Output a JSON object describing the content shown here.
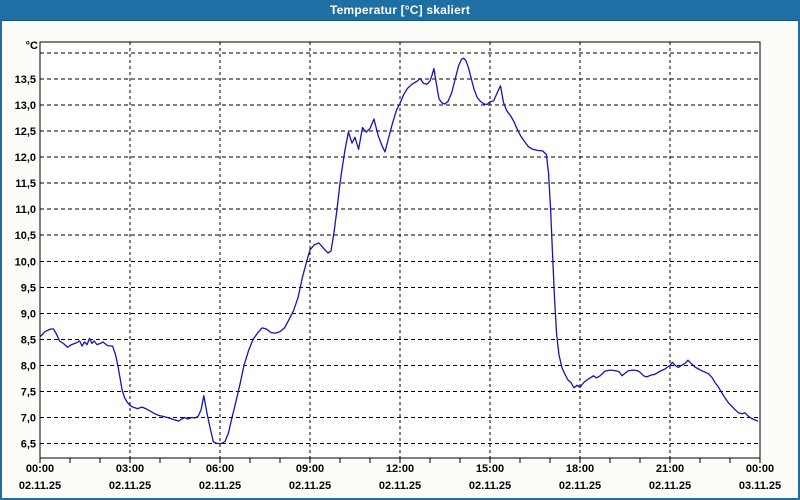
{
  "window": {
    "title": "Temperatur [°C] skaliert"
  },
  "colors": {
    "titlebar": "#1d6fa4",
    "titlebar_text": "#ffffff",
    "window_border": "#1d6fa4",
    "background": "#fcfcf9",
    "plot_background": "#ffffff",
    "gridline": "#000000",
    "axis": "#000000",
    "series_line": "#1414b8"
  },
  "chart_data": {
    "type": "line",
    "title": "Temperatur [°C] skaliert",
    "grid": true,
    "legend": false,
    "x_axis": {
      "unit": "time (hours over one day)",
      "xlim_hours": [
        0,
        24
      ],
      "major_step_hours": 3,
      "minor_step_hours": 1,
      "ticks": [
        {
          "hour": 0,
          "time": "00:00",
          "date": "02.11.25"
        },
        {
          "hour": 3,
          "time": "03:00",
          "date": "02.11.25"
        },
        {
          "hour": 6,
          "time": "06:00",
          "date": "02.11.25"
        },
        {
          "hour": 9,
          "time": "09:00",
          "date": "02.11.25"
        },
        {
          "hour": 12,
          "time": "12:00",
          "date": "02.11.25"
        },
        {
          "hour": 15,
          "time": "15:00",
          "date": "02.11.25"
        },
        {
          "hour": 18,
          "time": "18:00",
          "date": "02.11.25"
        },
        {
          "hour": 21,
          "time": "21:00",
          "date": "02.11.25"
        },
        {
          "hour": 24,
          "time": "00:00",
          "date": "03.11.25"
        }
      ]
    },
    "y_axis": {
      "unit_label": "°C",
      "ylim": [
        6.2,
        14.2
      ],
      "grid_min": 6.5,
      "grid_max": 14.0,
      "grid_step": 0.5,
      "ticks": [
        {
          "v": 13.5,
          "label": "13,5"
        },
        {
          "v": 13.0,
          "label": "13,0"
        },
        {
          "v": 12.5,
          "label": "12,5"
        },
        {
          "v": 12.0,
          "label": "12,0"
        },
        {
          "v": 11.5,
          "label": "11,5"
        },
        {
          "v": 11.0,
          "label": "11,0"
        },
        {
          "v": 10.5,
          "label": "10,5"
        },
        {
          "v": 10.0,
          "label": "10,0"
        },
        {
          "v": 9.5,
          "label": "9,5"
        },
        {
          "v": 9.0,
          "label": "9,0"
        },
        {
          "v": 8.5,
          "label": "8,5"
        },
        {
          "v": 8.0,
          "label": "8,0"
        },
        {
          "v": 7.5,
          "label": "7,5"
        },
        {
          "v": 7.0,
          "label": "7,0"
        },
        {
          "v": 6.5,
          "label": "6,5"
        }
      ]
    },
    "series": [
      {
        "name": "Temperatur [°C] skaliert",
        "color": "#1414b8",
        "points": [
          [
            0.0,
            8.55
          ],
          [
            0.17,
            8.65
          ],
          [
            0.35,
            8.7
          ],
          [
            0.45,
            8.7
          ],
          [
            0.55,
            8.6
          ],
          [
            0.65,
            8.47
          ],
          [
            0.78,
            8.42
          ],
          [
            0.92,
            8.35
          ],
          [
            1.05,
            8.4
          ],
          [
            1.2,
            8.43
          ],
          [
            1.32,
            8.47
          ],
          [
            1.4,
            8.37
          ],
          [
            1.48,
            8.45
          ],
          [
            1.57,
            8.4
          ],
          [
            1.65,
            8.52
          ],
          [
            1.73,
            8.42
          ],
          [
            1.8,
            8.47
          ],
          [
            1.9,
            8.4
          ],
          [
            2.0,
            8.42
          ],
          [
            2.1,
            8.45
          ],
          [
            2.25,
            8.38
          ],
          [
            2.42,
            8.37
          ],
          [
            2.52,
            8.2
          ],
          [
            2.6,
            7.98
          ],
          [
            2.67,
            7.75
          ],
          [
            2.74,
            7.52
          ],
          [
            2.82,
            7.38
          ],
          [
            2.9,
            7.3
          ],
          [
            3.0,
            7.23
          ],
          [
            3.1,
            7.2
          ],
          [
            3.25,
            7.17
          ],
          [
            3.4,
            7.2
          ],
          [
            3.52,
            7.17
          ],
          [
            3.65,
            7.13
          ],
          [
            3.8,
            7.08
          ],
          [
            3.95,
            7.04
          ],
          [
            4.1,
            7.02
          ],
          [
            4.25,
            7.0
          ],
          [
            4.4,
            6.97
          ],
          [
            4.52,
            6.95
          ],
          [
            4.62,
            6.93
          ],
          [
            4.72,
            6.97
          ],
          [
            4.82,
            7.0
          ],
          [
            4.93,
            6.97
          ],
          [
            5.05,
            7.0
          ],
          [
            5.17,
            6.99
          ],
          [
            5.28,
            7.03
          ],
          [
            5.37,
            7.15
          ],
          [
            5.46,
            7.42
          ],
          [
            5.56,
            7.1
          ],
          [
            5.67,
            6.8
          ],
          [
            5.78,
            6.53
          ],
          [
            5.9,
            6.5
          ],
          [
            6.05,
            6.5
          ],
          [
            6.17,
            6.54
          ],
          [
            6.28,
            6.7
          ],
          [
            6.4,
            7.0
          ],
          [
            6.53,
            7.3
          ],
          [
            6.67,
            7.65
          ],
          [
            6.8,
            8.0
          ],
          [
            6.95,
            8.28
          ],
          [
            7.1,
            8.5
          ],
          [
            7.25,
            8.62
          ],
          [
            7.4,
            8.72
          ],
          [
            7.55,
            8.7
          ],
          [
            7.7,
            8.63
          ],
          [
            7.85,
            8.62
          ],
          [
            8.0,
            8.65
          ],
          [
            8.15,
            8.72
          ],
          [
            8.3,
            8.88
          ],
          [
            8.45,
            9.05
          ],
          [
            8.6,
            9.3
          ],
          [
            8.75,
            9.7
          ],
          [
            8.9,
            10.02
          ],
          [
            9.0,
            10.22
          ],
          [
            9.15,
            10.32
          ],
          [
            9.3,
            10.35
          ],
          [
            9.45,
            10.25
          ],
          [
            9.6,
            10.16
          ],
          [
            9.7,
            10.2
          ],
          [
            9.8,
            10.55
          ],
          [
            9.9,
            11.0
          ],
          [
            10.0,
            11.5
          ],
          [
            10.08,
            11.82
          ],
          [
            10.17,
            12.15
          ],
          [
            10.28,
            12.48
          ],
          [
            10.4,
            12.27
          ],
          [
            10.5,
            12.38
          ],
          [
            10.62,
            12.15
          ],
          [
            10.75,
            12.57
          ],
          [
            10.87,
            12.48
          ],
          [
            11.0,
            12.55
          ],
          [
            11.13,
            12.73
          ],
          [
            11.28,
            12.4
          ],
          [
            11.4,
            12.22
          ],
          [
            11.5,
            12.1
          ],
          [
            11.62,
            12.37
          ],
          [
            11.75,
            12.65
          ],
          [
            11.88,
            12.9
          ],
          [
            12.0,
            13.03
          ],
          [
            12.12,
            13.2
          ],
          [
            12.25,
            13.32
          ],
          [
            12.4,
            13.4
          ],
          [
            12.55,
            13.45
          ],
          [
            12.67,
            13.51
          ],
          [
            12.78,
            13.42
          ],
          [
            12.9,
            13.4
          ],
          [
            13.0,
            13.46
          ],
          [
            13.07,
            13.58
          ],
          [
            13.13,
            13.7
          ],
          [
            13.2,
            13.45
          ],
          [
            13.3,
            13.12
          ],
          [
            13.4,
            13.04
          ],
          [
            13.5,
            13.02
          ],
          [
            13.6,
            13.07
          ],
          [
            13.72,
            13.23
          ],
          [
            13.83,
            13.48
          ],
          [
            13.95,
            13.75
          ],
          [
            14.05,
            13.88
          ],
          [
            14.12,
            13.9
          ],
          [
            14.2,
            13.85
          ],
          [
            14.28,
            13.72
          ],
          [
            14.37,
            13.52
          ],
          [
            14.47,
            13.3
          ],
          [
            14.57,
            13.15
          ],
          [
            14.68,
            13.07
          ],
          [
            14.8,
            13.02
          ],
          [
            14.9,
            13.01
          ],
          [
            15.0,
            13.06
          ],
          [
            15.12,
            13.08
          ],
          [
            15.25,
            13.25
          ],
          [
            15.35,
            13.37
          ],
          [
            15.45,
            13.05
          ],
          [
            15.55,
            12.9
          ],
          [
            15.68,
            12.8
          ],
          [
            15.8,
            12.68
          ],
          [
            15.92,
            12.52
          ],
          [
            16.03,
            12.4
          ],
          [
            16.15,
            12.3
          ],
          [
            16.28,
            12.2
          ],
          [
            16.42,
            12.15
          ],
          [
            16.58,
            12.13
          ],
          [
            16.75,
            12.12
          ],
          [
            16.88,
            12.05
          ],
          [
            16.95,
            11.7
          ],
          [
            17.02,
            11.0
          ],
          [
            17.08,
            10.2
          ],
          [
            17.15,
            9.3
          ],
          [
            17.22,
            8.6
          ],
          [
            17.3,
            8.2
          ],
          [
            17.4,
            7.95
          ],
          [
            17.5,
            7.83
          ],
          [
            17.6,
            7.72
          ],
          [
            17.7,
            7.67
          ],
          [
            17.8,
            7.57
          ],
          [
            17.9,
            7.62
          ],
          [
            18.0,
            7.58
          ],
          [
            18.12,
            7.67
          ],
          [
            18.28,
            7.74
          ],
          [
            18.45,
            7.8
          ],
          [
            18.55,
            7.76
          ],
          [
            18.67,
            7.8
          ],
          [
            18.83,
            7.89
          ],
          [
            19.0,
            7.91
          ],
          [
            19.17,
            7.9
          ],
          [
            19.3,
            7.88
          ],
          [
            19.4,
            7.8
          ],
          [
            19.5,
            7.85
          ],
          [
            19.62,
            7.9
          ],
          [
            19.78,
            7.91
          ],
          [
            19.9,
            7.9
          ],
          [
            20.0,
            7.87
          ],
          [
            20.12,
            7.8
          ],
          [
            20.22,
            7.78
          ],
          [
            20.35,
            7.81
          ],
          [
            20.5,
            7.83
          ],
          [
            20.67,
            7.89
          ],
          [
            20.83,
            7.93
          ],
          [
            21.0,
            8.0
          ],
          [
            21.08,
            8.06
          ],
          [
            21.17,
            8.0
          ],
          [
            21.28,
            7.96
          ],
          [
            21.38,
            8.0
          ],
          [
            21.5,
            8.04
          ],
          [
            21.6,
            8.1
          ],
          [
            21.72,
            8.03
          ],
          [
            21.83,
            7.97
          ],
          [
            21.95,
            7.93
          ],
          [
            22.05,
            7.9
          ],
          [
            22.17,
            7.87
          ],
          [
            22.28,
            7.84
          ],
          [
            22.4,
            7.77
          ],
          [
            22.5,
            7.67
          ],
          [
            22.62,
            7.58
          ],
          [
            22.72,
            7.48
          ],
          [
            22.83,
            7.38
          ],
          [
            22.95,
            7.28
          ],
          [
            23.05,
            7.22
          ],
          [
            23.17,
            7.15
          ],
          [
            23.28,
            7.09
          ],
          [
            23.4,
            7.07
          ],
          [
            23.5,
            7.09
          ],
          [
            23.62,
            7.02
          ],
          [
            23.72,
            6.98
          ],
          [
            23.85,
            6.95
          ],
          [
            23.92,
            6.93
          ]
        ]
      }
    ]
  }
}
